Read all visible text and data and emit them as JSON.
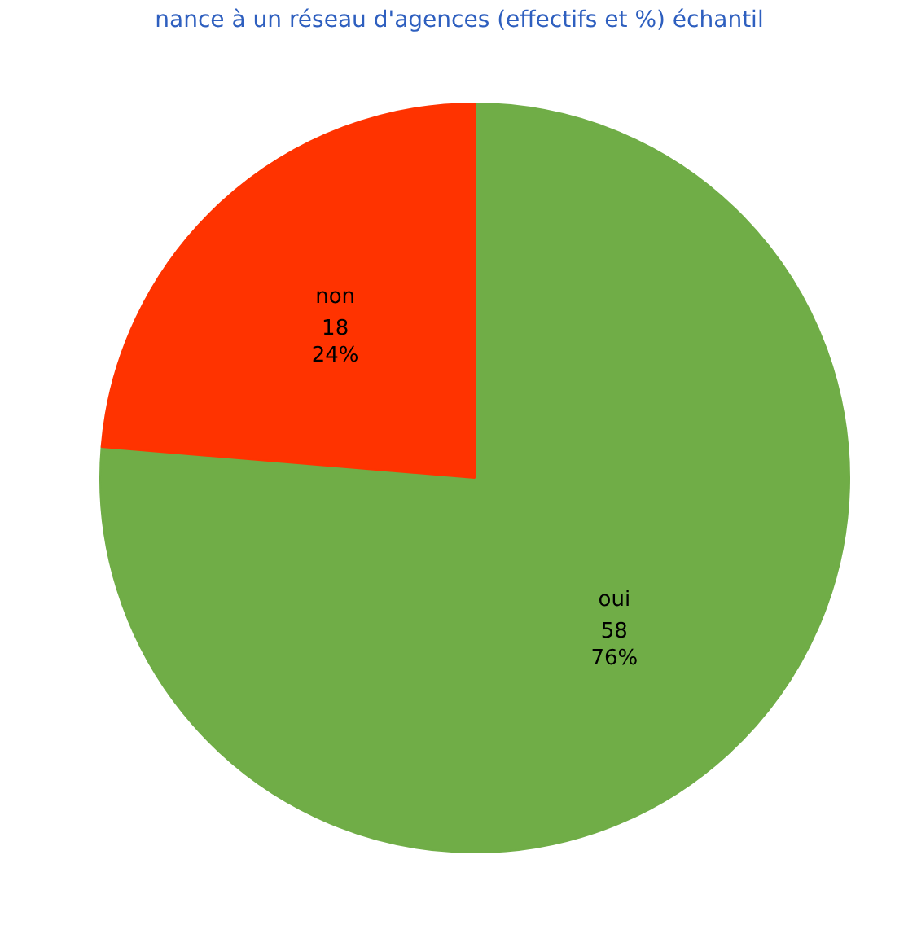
{
  "chart_data": {
    "type": "pie",
    "title": "nance à un réseau d'agences (effectifs et %) échantil",
    "categories": [
      "oui",
      "non"
    ],
    "values": [
      58,
      18
    ],
    "colors": [
      "#70ad47",
      "#ff3300"
    ],
    "value_labels": [
      "58\n76%",
      "18\n24%"
    ]
  }
}
